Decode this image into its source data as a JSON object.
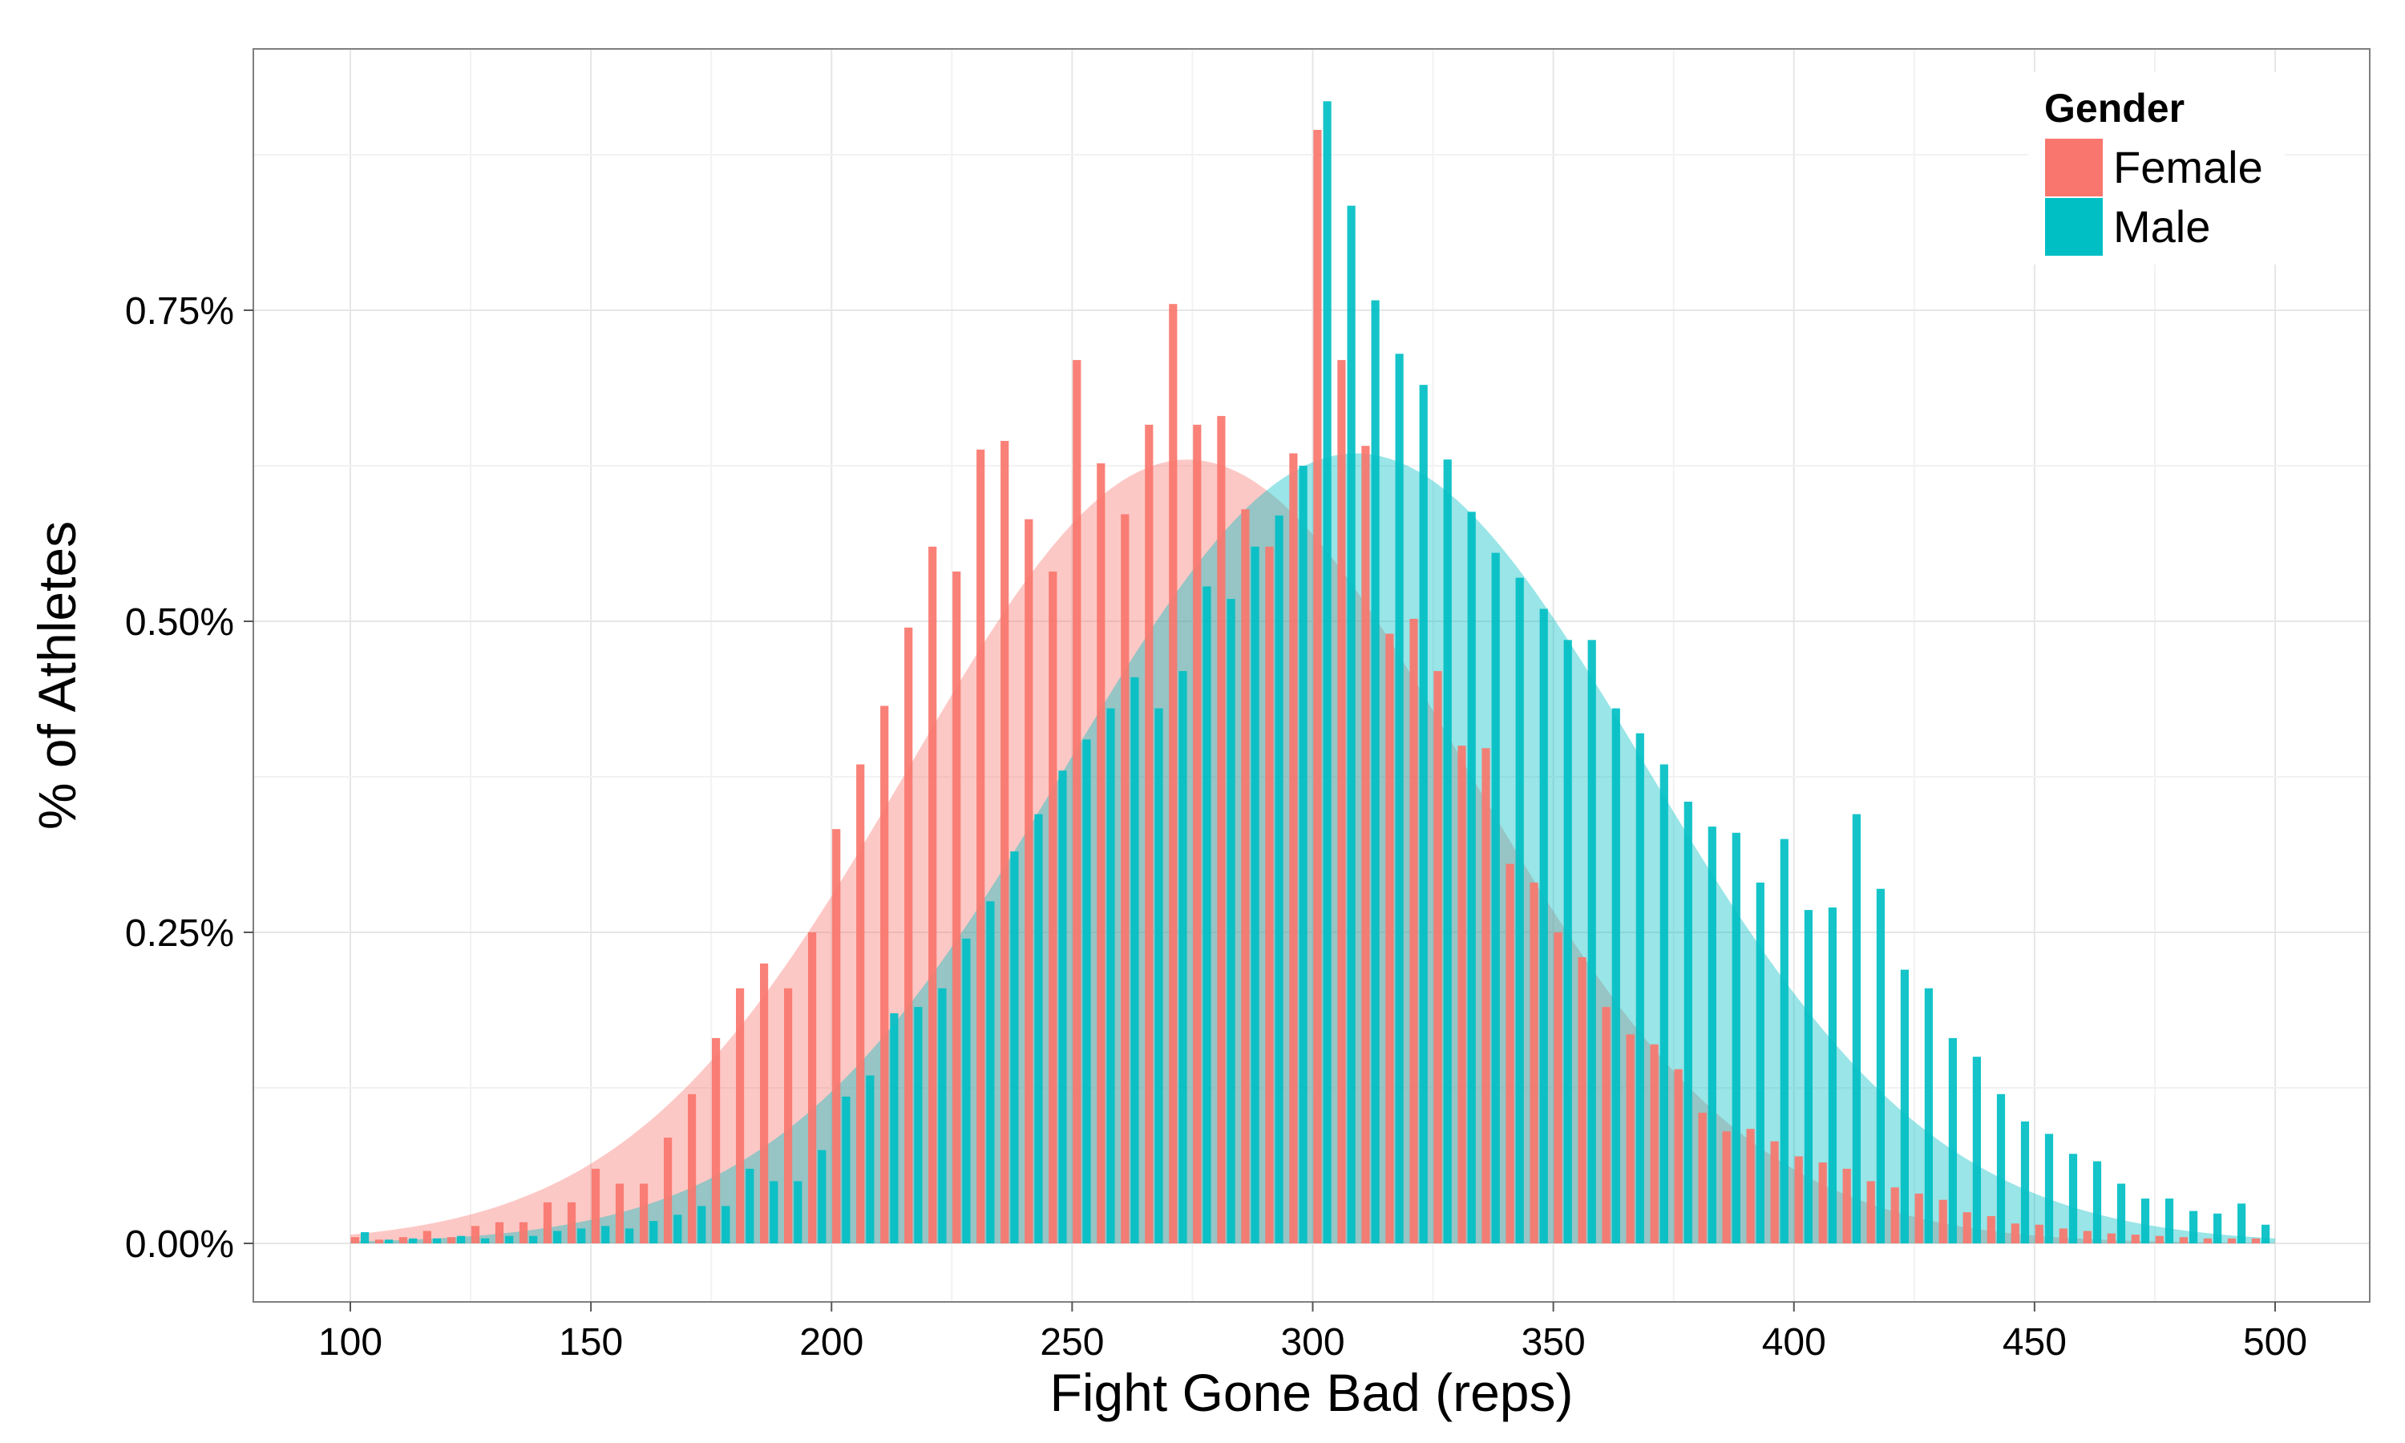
{
  "chart_data": {
    "type": "bar",
    "title": "",
    "xlabel": "Fight Gone Bad (reps)",
    "ylabel": "% of Athletes",
    "xlim": [
      100,
      500
    ],
    "ylim": [
      0,
      0.93
    ],
    "x_ticks": [
      100,
      150,
      200,
      250,
      300,
      350,
      400,
      450,
      500
    ],
    "x_tick_labels": [
      "100",
      "150",
      "200",
      "250",
      "300",
      "350",
      "400",
      "450",
      "500"
    ],
    "y_ticks": [
      0,
      0.25,
      0.5,
      0.75
    ],
    "y_tick_labels": [
      "0.00%",
      "0.25%",
      "0.50%",
      "0.75%"
    ],
    "grid": true,
    "legend": {
      "title": "Gender",
      "position": "top-right",
      "entries": [
        {
          "label": "Female",
          "color": "#F8766D"
        },
        {
          "label": "Male",
          "color": "#00BFC4"
        }
      ]
    },
    "bins": [
      102,
      107,
      112,
      117,
      122,
      127,
      132,
      137,
      142,
      147,
      152,
      157,
      162,
      167,
      172,
      177,
      182,
      187,
      192,
      197,
      202,
      207,
      212,
      217,
      222,
      227,
      232,
      237,
      242,
      247,
      252,
      257,
      262,
      267,
      272,
      277,
      282,
      287,
      292,
      297,
      302,
      307,
      312,
      317,
      322,
      327,
      332,
      337,
      342,
      347,
      352,
      357,
      362,
      367,
      372,
      377,
      382,
      387,
      392,
      397,
      402,
      407,
      412,
      417,
      422,
      427,
      432,
      437,
      442,
      447,
      452,
      457,
      462,
      467,
      472,
      477,
      482,
      487,
      492,
      497
    ],
    "series": [
      {
        "name": "Female",
        "color": "#F8766D",
        "values": [
          0.005,
          0.003,
          0.005,
          0.01,
          0.005,
          0.014,
          0.017,
          0.017,
          0.033,
          0.033,
          0.06,
          0.048,
          0.048,
          0.085,
          0.12,
          0.165,
          0.205,
          0.225,
          0.205,
          0.25,
          0.333,
          0.385,
          0.432,
          0.495,
          0.56,
          0.54,
          0.638,
          0.645,
          0.582,
          0.54,
          0.71,
          0.627,
          0.586,
          0.658,
          0.755,
          0.658,
          0.665,
          0.59,
          0.56,
          0.635,
          0.895,
          0.71,
          0.641,
          0.49,
          0.502,
          0.46,
          0.4,
          0.398,
          0.305,
          0.29,
          0.25,
          0.23,
          0.19,
          0.168,
          0.16,
          0.14,
          0.105,
          0.09,
          0.092,
          0.082,
          0.07,
          0.065,
          0.06,
          0.05,
          0.045,
          0.04,
          0.035,
          0.025,
          0.022,
          0.016,
          0.015,
          0.012,
          0.01,
          0.008,
          0.007,
          0.006,
          0.005,
          0.004,
          0.004,
          0.004
        ]
      },
      {
        "name": "Male",
        "color": "#00BFC4",
        "values": [
          0.009,
          0.003,
          0.004,
          0.004,
          0.006,
          0.004,
          0.006,
          0.006,
          0.01,
          0.012,
          0.014,
          0.012,
          0.018,
          0.023,
          0.03,
          0.03,
          0.06,
          0.05,
          0.05,
          0.075,
          0.118,
          0.135,
          0.185,
          0.19,
          0.205,
          0.245,
          0.275,
          0.315,
          0.345,
          0.38,
          0.405,
          0.43,
          0.455,
          0.43,
          0.46,
          0.528,
          0.518,
          0.56,
          0.585,
          0.625,
          0.918,
          0.834,
          0.758,
          0.715,
          0.69,
          0.63,
          0.588,
          0.555,
          0.535,
          0.51,
          0.485,
          0.485,
          0.43,
          0.41,
          0.385,
          0.355,
          0.335,
          0.33,
          0.29,
          0.325,
          0.268,
          0.27,
          0.345,
          0.285,
          0.22,
          0.205,
          0.165,
          0.15,
          0.12,
          0.098,
          0.088,
          0.072,
          0.066,
          0.048,
          0.036,
          0.036,
          0.026,
          0.024,
          0.032,
          0.015
        ]
      }
    ],
    "density_curves": [
      {
        "name": "Female",
        "color": "#F8766D",
        "mean": 274,
        "sd": 58,
        "peak": 0.63,
        "x_range": [
          100,
          500
        ]
      },
      {
        "name": "Male",
        "color": "#00BFC4",
        "mean": 309,
        "sd": 60,
        "peak": 0.635,
        "x_range": [
          100,
          500
        ]
      }
    ]
  }
}
